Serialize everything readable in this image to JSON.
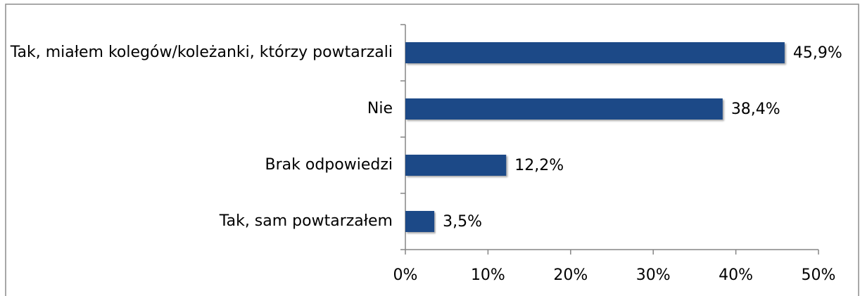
{
  "chart_data": {
    "type": "hbar",
    "categories": [
      "Tak, miałem kolegów/koleżanki, którzy powtarzali",
      "Nie",
      "Brak odpowiedzi",
      "Tak, sam powtarzałem"
    ],
    "values": [
      45.9,
      38.4,
      12.2,
      3.5
    ],
    "value_labels": [
      "45,9%",
      "38,4%",
      "12,2%",
      "3,5%"
    ],
    "color": "#1f4a87",
    "xlim": [
      0,
      50
    ],
    "xticks": [
      {
        "value": 0,
        "label": "0%"
      },
      {
        "value": 10,
        "label": "10%"
      },
      {
        "value": 20,
        "label": "20%"
      },
      {
        "value": 30,
        "label": "30%"
      },
      {
        "value": 40,
        "label": "40%"
      },
      {
        "value": 50,
        "label": "50%"
      }
    ]
  }
}
